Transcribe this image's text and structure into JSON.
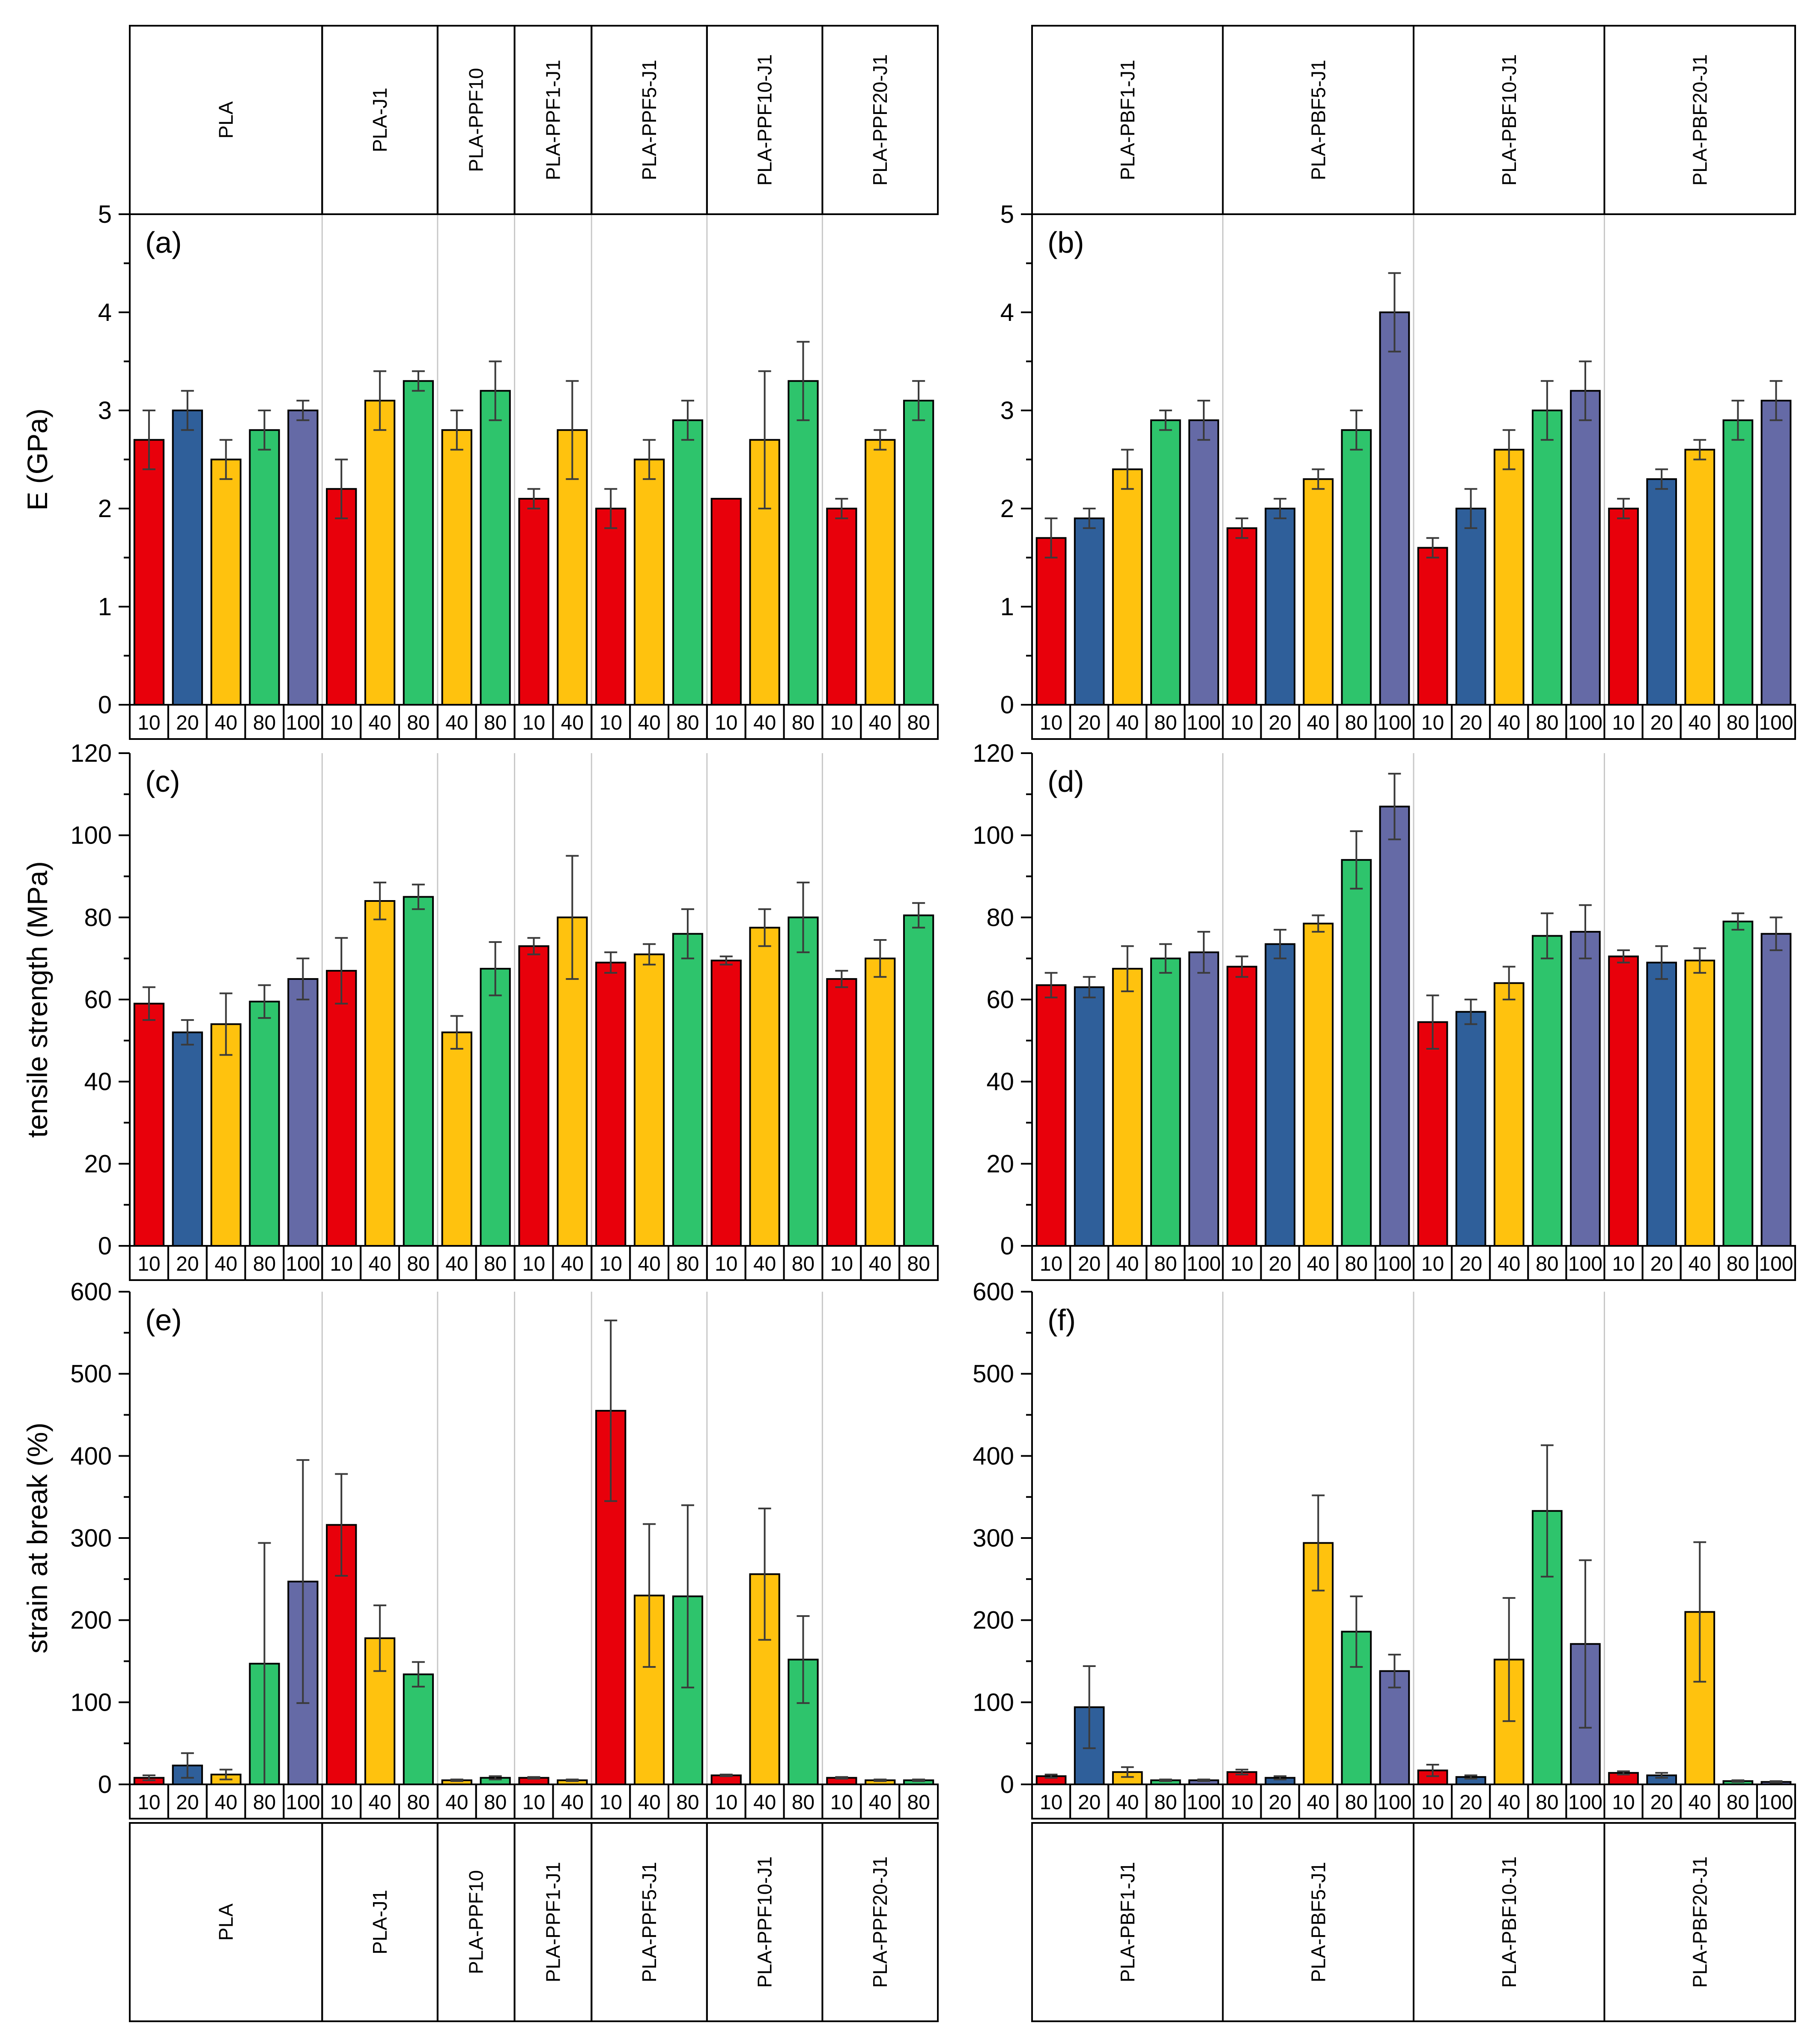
{
  "colors": {
    "10": "#e8000b",
    "20": "#2f5f9a",
    "40": "#ffc20e",
    "80": "#2ec46c",
    "100": "#656aa6"
  },
  "chart_data": [
    {
      "id": "a",
      "panel_label": "(a)",
      "type": "bar",
      "ylabel": "E (GPa)",
      "ylim": [
        0,
        5
      ],
      "yticks": [
        0,
        1,
        2,
        3,
        4,
        5
      ],
      "groups": [
        {
          "name": "PLA",
          "categories": [
            "10",
            "20",
            "40",
            "80",
            "100"
          ],
          "values": [
            2.7,
            3.0,
            2.5,
            2.8,
            3.0
          ],
          "errors": [
            0.3,
            0.2,
            0.2,
            0.2,
            0.1
          ]
        },
        {
          "name": "PLA-J1",
          "categories": [
            "10",
            "40",
            "80"
          ],
          "values": [
            2.2,
            3.1,
            3.3
          ],
          "errors": [
            0.3,
            0.3,
            0.1
          ]
        },
        {
          "name": "PLA-PPF10",
          "categories": [
            "40",
            "80"
          ],
          "values": [
            2.8,
            3.2
          ],
          "errors": [
            0.2,
            0.3
          ]
        },
        {
          "name": "PLA-PPF1-J1",
          "categories": [
            "10",
            "40"
          ],
          "values": [
            2.1,
            2.8
          ],
          "errors": [
            0.1,
            0.5
          ]
        },
        {
          "name": "PLA-PPF5-J1",
          "categories": [
            "10",
            "40",
            "80"
          ],
          "values": [
            2.0,
            2.5,
            2.9
          ],
          "errors": [
            0.2,
            0.2,
            0.2
          ]
        },
        {
          "name": "PLA-PPF10-J1",
          "categories": [
            "10",
            "40",
            "80"
          ],
          "values": [
            2.1,
            2.7,
            3.3
          ],
          "errors": [
            0,
            0.7,
            0.4
          ]
        },
        {
          "name": "PLA-PPF20-J1",
          "categories": [
            "10",
            "40",
            "80"
          ],
          "values": [
            2.0,
            2.7,
            3.1
          ],
          "errors": [
            0.1,
            0.1,
            0.2
          ]
        }
      ]
    },
    {
      "id": "b",
      "panel_label": "(b)",
      "type": "bar",
      "ylabel": "",
      "ylim": [
        0,
        5
      ],
      "yticks": [
        0,
        1,
        2,
        3,
        4,
        5
      ],
      "groups": [
        {
          "name": "PLA-PBF1-J1",
          "categories": [
            "10",
            "20",
            "40",
            "80",
            "100"
          ],
          "values": [
            1.7,
            1.9,
            2.4,
            2.9,
            2.9
          ],
          "errors": [
            0.2,
            0.1,
            0.2,
            0.1,
            0.2
          ]
        },
        {
          "name": "PLA-PBF5-J1",
          "categories": [
            "10",
            "20",
            "40",
            "80",
            "100"
          ],
          "values": [
            1.8,
            2.0,
            2.3,
            2.8,
            4.0
          ],
          "errors": [
            0.1,
            0.1,
            0.1,
            0.2,
            0.4
          ]
        },
        {
          "name": "PLA-PBF10-J1",
          "categories": [
            "10",
            "20",
            "40",
            "80",
            "100"
          ],
          "values": [
            1.6,
            2.0,
            2.6,
            3.0,
            3.2
          ],
          "errors": [
            0.1,
            0.2,
            0.2,
            0.3,
            0.3
          ]
        },
        {
          "name": "PLA-PBF20-J1",
          "categories": [
            "10",
            "20",
            "40",
            "80",
            "100"
          ],
          "values": [
            2.0,
            2.3,
            2.6,
            2.9,
            3.1
          ],
          "errors": [
            0.1,
            0.1,
            0.1,
            0.2,
            0.2
          ]
        }
      ]
    },
    {
      "id": "c",
      "panel_label": "(c)",
      "type": "bar",
      "ylabel": "tensile strength (MPa)",
      "ylim": [
        0,
        120
      ],
      "yticks": [
        0,
        20,
        40,
        60,
        80,
        100,
        120
      ],
      "groups": [
        {
          "name": "PLA",
          "categories": [
            "10",
            "20",
            "40",
            "80",
            "100"
          ],
          "values": [
            59,
            52,
            54,
            59.5,
            65
          ],
          "errors": [
            4,
            3,
            7.5,
            4,
            5
          ]
        },
        {
          "name": "PLA-J1",
          "categories": [
            "10",
            "40",
            "80"
          ],
          "values": [
            67,
            84,
            85
          ],
          "errors": [
            8,
            4.5,
            3
          ]
        },
        {
          "name": "PLA-PPF10",
          "categories": [
            "40",
            "80"
          ],
          "values": [
            52,
            67.5
          ],
          "errors": [
            4,
            6.5
          ]
        },
        {
          "name": "PLA-PPF1-J1",
          "categories": [
            "10",
            "40"
          ],
          "values": [
            73,
            80
          ],
          "errors": [
            2,
            15
          ]
        },
        {
          "name": "PLA-PPF5-J1",
          "categories": [
            "10",
            "40",
            "80"
          ],
          "values": [
            69,
            71,
            76
          ],
          "errors": [
            2.5,
            2.5,
            6
          ]
        },
        {
          "name": "PLA-PPF10-J1",
          "categories": [
            "10",
            "40",
            "80"
          ],
          "values": [
            69.5,
            77.5,
            80
          ],
          "errors": [
            1,
            4.5,
            8.5
          ]
        },
        {
          "name": "PLA-PPF20-J1",
          "categories": [
            "10",
            "40",
            "80"
          ],
          "values": [
            65,
            70,
            80.5
          ],
          "errors": [
            2,
            4.5,
            3
          ]
        }
      ]
    },
    {
      "id": "d",
      "panel_label": "(d)",
      "type": "bar",
      "ylabel": "",
      "ylim": [
        0,
        120
      ],
      "yticks": [
        0,
        20,
        40,
        60,
        80,
        100,
        120
      ],
      "groups": [
        {
          "name": "PLA-PBF1-J1",
          "categories": [
            "10",
            "20",
            "40",
            "80",
            "100"
          ],
          "values": [
            63.5,
            63,
            67.5,
            70,
            71.5
          ],
          "errors": [
            3,
            2.5,
            5.5,
            3.5,
            5
          ]
        },
        {
          "name": "PLA-PBF5-J1",
          "categories": [
            "10",
            "20",
            "40",
            "80",
            "100"
          ],
          "values": [
            68,
            73.5,
            78.5,
            94,
            107
          ],
          "errors": [
            2.5,
            3.5,
            2,
            7,
            8
          ]
        },
        {
          "name": "PLA-PBF10-J1",
          "categories": [
            "10",
            "20",
            "40",
            "80",
            "100"
          ],
          "values": [
            54.5,
            57,
            64,
            75.5,
            76.5
          ],
          "errors": [
            6.5,
            3,
            4,
            5.5,
            6.5
          ]
        },
        {
          "name": "PLA-PBF20-J1",
          "categories": [
            "10",
            "20",
            "40",
            "80",
            "100"
          ],
          "values": [
            70.5,
            69,
            69.5,
            79,
            76
          ],
          "errors": [
            1.5,
            4,
            3,
            2,
            4
          ]
        }
      ]
    },
    {
      "id": "e",
      "panel_label": "(e)",
      "type": "bar",
      "ylabel": "strain at break (%)",
      "ylim": [
        0,
        600
      ],
      "yticks": [
        0,
        100,
        200,
        300,
        400,
        500,
        600
      ],
      "groups": [
        {
          "name": "PLA",
          "categories": [
            "10",
            "20",
            "40",
            "80",
            "100"
          ],
          "values": [
            8,
            23,
            12,
            147,
            247
          ],
          "errors": [
            3,
            15,
            6,
            147,
            148
          ]
        },
        {
          "name": "PLA-J1",
          "categories": [
            "10",
            "40",
            "80"
          ],
          "values": [
            316,
            178,
            134
          ],
          "errors": [
            62,
            40,
            15
          ]
        },
        {
          "name": "PLA-PPF10",
          "categories": [
            "40",
            "80"
          ],
          "values": [
            5,
            8
          ],
          "errors": [
            1,
            2
          ]
        },
        {
          "name": "PLA-PPF1-J1",
          "categories": [
            "10",
            "40"
          ],
          "values": [
            8,
            5
          ],
          "errors": [
            1,
            1
          ]
        },
        {
          "name": "PLA-PPF5-J1",
          "categories": [
            "10",
            "40",
            "80"
          ],
          "values": [
            455,
            230,
            229
          ],
          "errors": [
            110,
            87,
            111
          ]
        },
        {
          "name": "PLA-PPF10-J1",
          "categories": [
            "10",
            "40",
            "80"
          ],
          "values": [
            11,
            256,
            152
          ],
          "errors": [
            1,
            80,
            53
          ]
        },
        {
          "name": "PLA-PPF20-J1",
          "categories": [
            "10",
            "40",
            "80"
          ],
          "values": [
            8,
            5,
            5
          ],
          "errors": [
            1,
            1,
            1
          ]
        }
      ]
    },
    {
      "id": "f",
      "panel_label": "(f)",
      "type": "bar",
      "ylabel": "",
      "ylim": [
        0,
        600
      ],
      "yticks": [
        0,
        100,
        200,
        300,
        400,
        500,
        600
      ],
      "groups": [
        {
          "name": "PLA-PBF1-J1",
          "categories": [
            "10",
            "20",
            "40",
            "80",
            "100"
          ],
          "values": [
            10,
            94,
            15,
            5,
            5
          ],
          "errors": [
            2,
            50,
            6,
            1,
            1
          ]
        },
        {
          "name": "PLA-PBF5-J1",
          "categories": [
            "10",
            "20",
            "40",
            "80",
            "100"
          ],
          "values": [
            15,
            8,
            294,
            186,
            138
          ],
          "errors": [
            3,
            2,
            58,
            43,
            20
          ]
        },
        {
          "name": "PLA-PBF10-J1",
          "categories": [
            "10",
            "20",
            "40",
            "80",
            "100"
          ],
          "values": [
            17,
            9,
            152,
            333,
            171
          ],
          "errors": [
            7,
            2,
            75,
            80,
            102
          ]
        },
        {
          "name": "PLA-PBF20-J1",
          "categories": [
            "10",
            "20",
            "40",
            "80",
            "100"
          ],
          "values": [
            14,
            11,
            210,
            4,
            3
          ],
          "errors": [
            2,
            3,
            85,
            1,
            1
          ]
        }
      ]
    }
  ]
}
